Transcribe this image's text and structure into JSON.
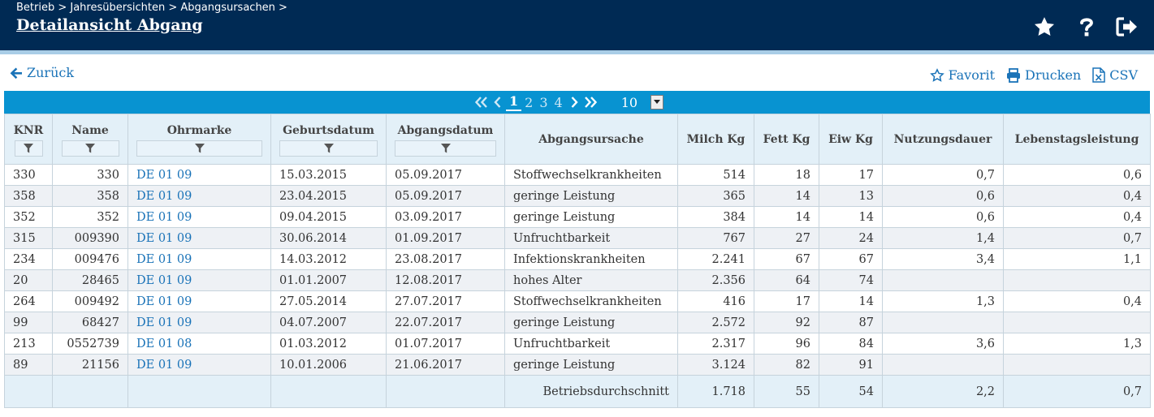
{
  "header": {
    "breadcrumb": "Betrieb > Jahresübersichten > Abgangsursachen >",
    "title": "Detailansicht Abgang",
    "icons": [
      "star-icon",
      "help-icon",
      "logout-icon"
    ]
  },
  "nav": {
    "back_label": "Zurück",
    "favorite_label": "Favorit",
    "print_label": "Drucken",
    "csv_label": "CSV"
  },
  "pager": {
    "pages": [
      "1",
      "2",
      "3",
      "4"
    ],
    "current_page": "1",
    "page_size": "10"
  },
  "table": {
    "columns": {
      "knr": "KNR",
      "name": "Name",
      "ohrmarke": "Ohrmarke",
      "geburtsdatum": "Geburtsdatum",
      "abgangsdatum": "Abgangsdatum",
      "abgangsursache": "Abgangsursache",
      "milch": "Milch Kg",
      "fett": "Fett Kg",
      "eiw": "Eiw Kg",
      "nutzungsdauer": "Nutzungsdauer",
      "lebenstagsleistung": "Lebenstagsleistung"
    },
    "rows": [
      [
        "330",
        "330",
        "DE 01 09",
        "15.03.2015",
        "05.09.2017",
        "Stoffwechselkrankheiten",
        "514",
        "18",
        "17",
        "0,7",
        "0,6"
      ],
      [
        "358",
        "358",
        "DE 01 09",
        "23.04.2015",
        "05.09.2017",
        "geringe Leistung",
        "365",
        "14",
        "13",
        "0,6",
        "0,4"
      ],
      [
        "352",
        "352",
        "DE 01 09",
        "09.04.2015",
        "03.09.2017",
        "geringe Leistung",
        "384",
        "14",
        "14",
        "0,6",
        "0,4"
      ],
      [
        "315",
        "009390",
        "DE 01 09",
        "30.06.2014",
        "01.09.2017",
        "Unfruchtbarkeit",
        "767",
        "27",
        "24",
        "1,4",
        "0,7"
      ],
      [
        "234",
        "009476",
        "DE 01 09",
        "14.03.2012",
        "23.08.2017",
        "Infektionskrankheiten",
        "2.241",
        "67",
        "67",
        "3,4",
        "1,1"
      ],
      [
        "20",
        "28465",
        "DE 01 09",
        "01.01.2007",
        "12.08.2017",
        "hohes Alter",
        "2.356",
        "64",
        "74",
        "",
        ""
      ],
      [
        "264",
        "009492",
        "DE 01 09",
        "27.05.2014",
        "27.07.2017",
        "Stoffwechselkrankheiten",
        "416",
        "17",
        "14",
        "1,3",
        "0,4"
      ],
      [
        "99",
        "68427",
        "DE 01 09",
        "04.07.2007",
        "22.07.2017",
        "geringe Leistung",
        "2.572",
        "92",
        "87",
        "",
        ""
      ],
      [
        "213",
        "0552739",
        "DE 01 08",
        "01.03.2012",
        "01.07.2017",
        "Unfruchtbarkeit",
        "2.317",
        "96",
        "84",
        "3,6",
        "1,3"
      ],
      [
        "89",
        "21156",
        "DE 01 09",
        "10.01.2006",
        "21.06.2017",
        "geringe Leistung",
        "3.124",
        "82",
        "91",
        "",
        ""
      ]
    ],
    "footer": {
      "label": "Betriebsdurchschnitt",
      "milch": "1.718",
      "fett": "55",
      "eiw": "54",
      "nutzungsdauer": "2,2",
      "lebenstagsleistung": "0,7"
    }
  },
  "colors": {
    "header_bg": "#002a54",
    "pager_bg": "#0893d1",
    "link": "#1a73b8",
    "header_cell_bg": "#e3f0f8"
  }
}
